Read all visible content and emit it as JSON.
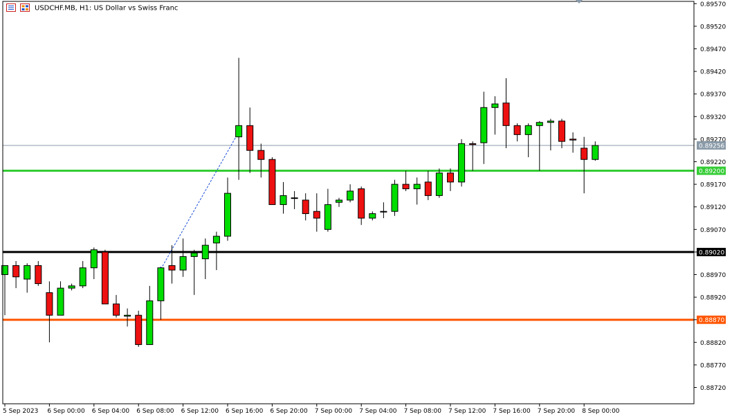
{
  "header": {
    "symbol": "USDCHF.MB",
    "timeframe": "H1",
    "description": "US Dollar vs Swiss Franc",
    "title_text": "USDCHF.MB, H1:  US Dollar vs Swiss Franc",
    "icons": [
      "chart-list-icon",
      "chart-grid-icon"
    ]
  },
  "colors": {
    "background": "#ffffff",
    "frame": "#000000",
    "bull": "#00dd00",
    "bear": "#ee1111",
    "current_price_line": "#8a9aa8",
    "green_level": "#33cc33",
    "black_level": "#000000",
    "orange_level": "#ff5500",
    "trade_line": "#1e50d8"
  },
  "chart_data": {
    "type": "candlestick",
    "title": "USDCHF.MB, H1:  US Dollar vs Swiss Franc",
    "ylim": [
      0.8868,
      0.8958
    ],
    "y_ticks": [
      "0.89570",
      "0.89520",
      "0.89470",
      "0.89420",
      "0.89370",
      "0.89320",
      "0.89270",
      "0.89220",
      "0.89170",
      "0.89120",
      "0.89070",
      "0.89020",
      "0.88970",
      "0.88920",
      "0.88870",
      "0.88820",
      "0.88770",
      "0.88720"
    ],
    "x_ticks": [
      {
        "index": 0,
        "label": "5 Sep 2023"
      },
      {
        "index": 4,
        "label": "6 Sep 00:00"
      },
      {
        "index": 8,
        "label": "6 Sep 04:00"
      },
      {
        "index": 12,
        "label": "6 Sep 08:00"
      },
      {
        "index": 16,
        "label": "6 Sep 12:00"
      },
      {
        "index": 20,
        "label": "6 Sep 16:00"
      },
      {
        "index": 24,
        "label": "6 Sep 20:00"
      },
      {
        "index": 28,
        "label": "7 Sep 00:00"
      },
      {
        "index": 32,
        "label": "7 Sep 04:00"
      },
      {
        "index": 36,
        "label": "7 Sep 08:00"
      },
      {
        "index": 40,
        "label": "7 Sep 12:00"
      },
      {
        "index": 44,
        "label": "7 Sep 16:00"
      },
      {
        "index": 48,
        "label": "7 Sep 20:00"
      },
      {
        "index": 52,
        "label": "8 Sep 00:00"
      }
    ],
    "candles": [
      {
        "o": 0.8897,
        "h": 0.8899,
        "l": 0.8888,
        "c": 0.8899
      },
      {
        "o": 0.8899,
        "h": 0.89,
        "l": 0.8894,
        "c": 0.88965
      },
      {
        "o": 0.8896,
        "h": 0.88995,
        "l": 0.8893,
        "c": 0.8899
      },
      {
        "o": 0.8899,
        "h": 0.89,
        "l": 0.88945,
        "c": 0.8895
      },
      {
        "o": 0.8893,
        "h": 0.88955,
        "l": 0.8882,
        "c": 0.8888
      },
      {
        "o": 0.8888,
        "h": 0.88955,
        "l": 0.8888,
        "c": 0.8894
      },
      {
        "o": 0.8894,
        "h": 0.8895,
        "l": 0.88935,
        "c": 0.88945
      },
      {
        "o": 0.88945,
        "h": 0.89,
        "l": 0.8894,
        "c": 0.88985
      },
      {
        "o": 0.88985,
        "h": 0.8903,
        "l": 0.8896,
        "c": 0.89025
      },
      {
        "o": 0.8902,
        "h": 0.89025,
        "l": 0.88905,
        "c": 0.88905
      },
      {
        "o": 0.88905,
        "h": 0.88925,
        "l": 0.88875,
        "c": 0.8888
      },
      {
        "o": 0.88878,
        "h": 0.88895,
        "l": 0.88855,
        "c": 0.8888
      },
      {
        "o": 0.8888,
        "h": 0.8889,
        "l": 0.8881,
        "c": 0.88815
      },
      {
        "o": 0.88815,
        "h": 0.88945,
        "l": 0.88815,
        "c": 0.88912
      },
      {
        "o": 0.88912,
        "h": 0.88985,
        "l": 0.8887,
        "c": 0.88985
      },
      {
        "o": 0.8899,
        "h": 0.89035,
        "l": 0.8895,
        "c": 0.8898
      },
      {
        "o": 0.8898,
        "h": 0.8905,
        "l": 0.88965,
        "c": 0.8901
      },
      {
        "o": 0.8901,
        "h": 0.89025,
        "l": 0.88925,
        "c": 0.89018
      },
      {
        "o": 0.89005,
        "h": 0.8905,
        "l": 0.8896,
        "c": 0.89035
      },
      {
        "o": 0.8904,
        "h": 0.89065,
        "l": 0.8898,
        "c": 0.89055
      },
      {
        "o": 0.89055,
        "h": 0.89185,
        "l": 0.89045,
        "c": 0.8915
      },
      {
        "o": 0.89275,
        "h": 0.8945,
        "l": 0.8918,
        "c": 0.893
      },
      {
        "o": 0.893,
        "h": 0.8934,
        "l": 0.89195,
        "c": 0.89245
      },
      {
        "o": 0.89245,
        "h": 0.8926,
        "l": 0.89185,
        "c": 0.89225
      },
      {
        "o": 0.89225,
        "h": 0.8923,
        "l": 0.89125,
        "c": 0.89125
      },
      {
        "o": 0.89125,
        "h": 0.89175,
        "l": 0.89105,
        "c": 0.89145
      },
      {
        "o": 0.8914,
        "h": 0.89155,
        "l": 0.89115,
        "c": 0.8914
      },
      {
        "o": 0.89135,
        "h": 0.8915,
        "l": 0.8909,
        "c": 0.89105
      },
      {
        "o": 0.8911,
        "h": 0.8915,
        "l": 0.89065,
        "c": 0.89095
      },
      {
        "o": 0.8907,
        "h": 0.8916,
        "l": 0.89065,
        "c": 0.89125
      },
      {
        "o": 0.8913,
        "h": 0.8914,
        "l": 0.8912,
        "c": 0.89135
      },
      {
        "o": 0.89135,
        "h": 0.8917,
        "l": 0.8913,
        "c": 0.89155
      },
      {
        "o": 0.8916,
        "h": 0.89165,
        "l": 0.8908,
        "c": 0.89095
      },
      {
        "o": 0.89095,
        "h": 0.8911,
        "l": 0.8909,
        "c": 0.89105
      },
      {
        "o": 0.8911,
        "h": 0.8913,
        "l": 0.89095,
        "c": 0.8911
      },
      {
        "o": 0.8911,
        "h": 0.8918,
        "l": 0.891,
        "c": 0.8917
      },
      {
        "o": 0.8917,
        "h": 0.892,
        "l": 0.89155,
        "c": 0.8916
      },
      {
        "o": 0.8916,
        "h": 0.89185,
        "l": 0.89125,
        "c": 0.8917
      },
      {
        "o": 0.89175,
        "h": 0.892,
        "l": 0.89135,
        "c": 0.89145
      },
      {
        "o": 0.89145,
        "h": 0.89205,
        "l": 0.8914,
        "c": 0.89195
      },
      {
        "o": 0.89195,
        "h": 0.89205,
        "l": 0.89155,
        "c": 0.89175
      },
      {
        "o": 0.89175,
        "h": 0.8927,
        "l": 0.89165,
        "c": 0.8926
      },
      {
        "o": 0.8926,
        "h": 0.89265,
        "l": 0.892,
        "c": 0.89258
      },
      {
        "o": 0.89262,
        "h": 0.89375,
        "l": 0.89215,
        "c": 0.8934
      },
      {
        "o": 0.8934,
        "h": 0.89365,
        "l": 0.8928,
        "c": 0.89348
      },
      {
        "o": 0.8935,
        "h": 0.89405,
        "l": 0.8925,
        "c": 0.893
      },
      {
        "o": 0.893,
        "h": 0.89305,
        "l": 0.89265,
        "c": 0.8928
      },
      {
        "o": 0.8928,
        "h": 0.89305,
        "l": 0.8923,
        "c": 0.893
      },
      {
        "o": 0.893,
        "h": 0.8931,
        "l": 0.892,
        "c": 0.89307
      },
      {
        "o": 0.89307,
        "h": 0.89315,
        "l": 0.89245,
        "c": 0.8931
      },
      {
        "o": 0.8931,
        "h": 0.89315,
        "l": 0.8925,
        "c": 0.89265
      },
      {
        "o": 0.8927,
        "h": 0.89285,
        "l": 0.8924,
        "c": 0.89268
      },
      {
        "o": 0.8925,
        "h": 0.89275,
        "l": 0.8915,
        "c": 0.89225
      },
      {
        "o": 0.89225,
        "h": 0.89265,
        "l": 0.89222,
        "c": 0.89256
      }
    ],
    "price_lines": [
      {
        "name": "current-price",
        "value": 0.89256,
        "label": "0.89256",
        "style": "thin-gray"
      },
      {
        "name": "green-level",
        "value": 0.892,
        "label": "0.89200",
        "style": "thick-green"
      },
      {
        "name": "black-level",
        "value": 0.8902,
        "label": "0.89020",
        "style": "thick-black"
      },
      {
        "name": "orange-level",
        "value": 0.8887,
        "label": "0.88870",
        "style": "thick-orange"
      }
    ],
    "trade_line": {
      "from_index": 14,
      "from_price": 0.88982,
      "to_index": 21,
      "to_price": 0.89286
    }
  }
}
